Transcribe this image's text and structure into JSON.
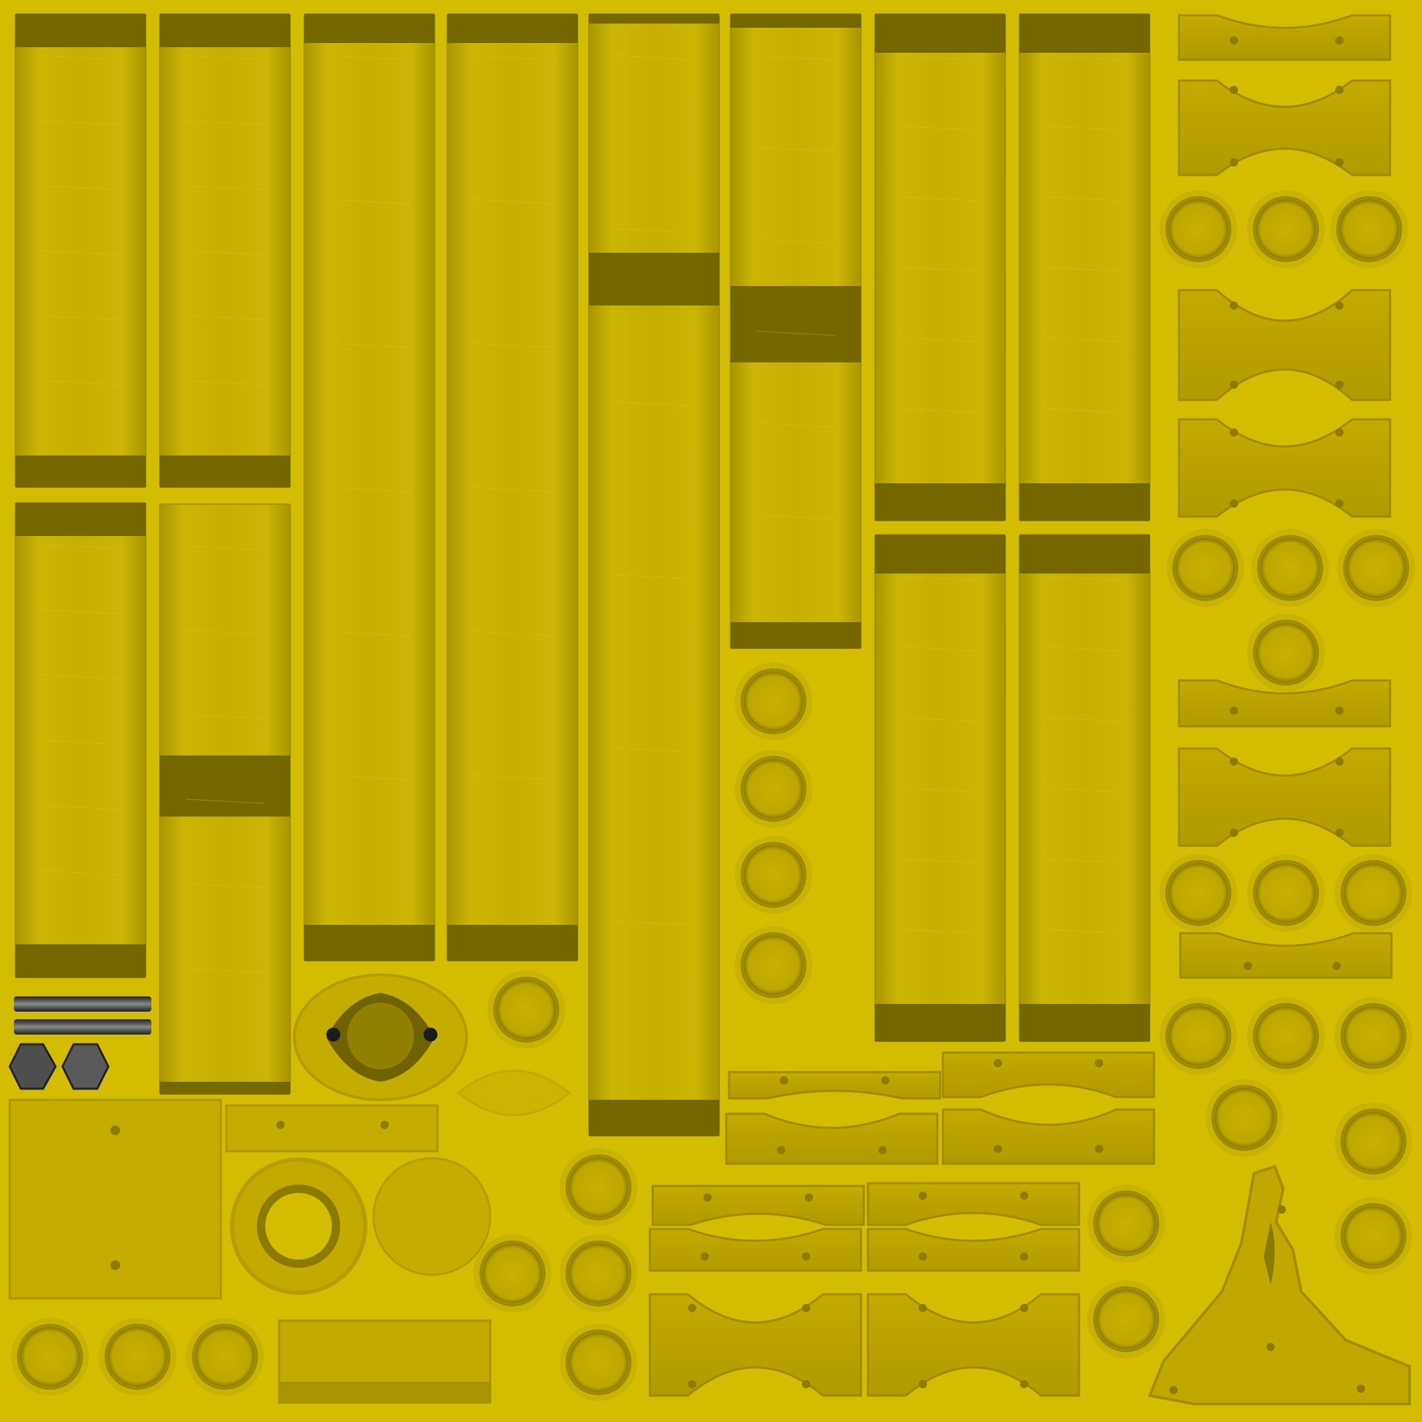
{
  "palette": {
    "background": "#d4bd00",
    "panel": "#c9b000",
    "panel_light": "#d6c00c",
    "band": "#6f6200",
    "edge": "#a89200",
    "hole": "#3f3800",
    "metal_dark": "#2a2a2a",
    "metal_light": "#8a8a8a"
  }
}
